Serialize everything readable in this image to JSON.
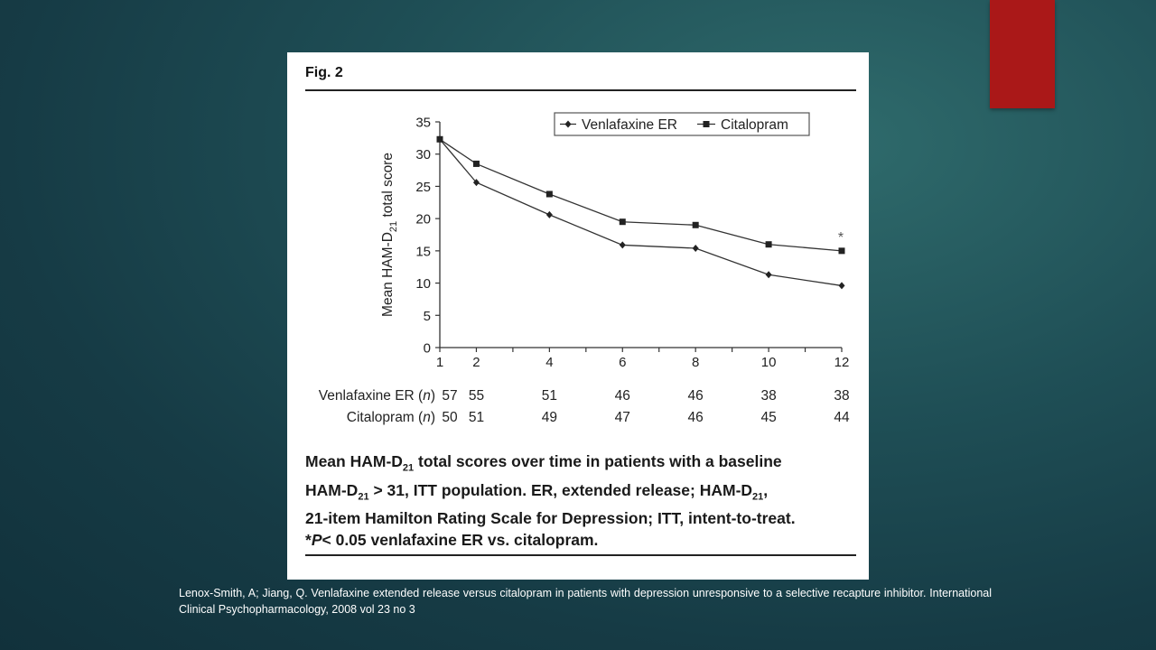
{
  "figure": {
    "label": "Fig. 2",
    "caption": {
      "l1_a": "Mean HAM-D",
      "l1_sub": "21",
      "l1_b": " total scores over time in patients with a baseline",
      "l2_a": "HAM-D",
      "l2_sub": "21",
      "l2_b": " > 31, ITT population. ER, extended release; HAM-D",
      "l2_sub2": "21",
      "l2_c": ",",
      "l3": "21-item Hamilton Rating Scale for Depression; ITT, intent-to-treat.",
      "l4_a": "*",
      "l4_p": "P",
      "l4_b": "< 0.05 venlafaxine ER vs. citalopram."
    }
  },
  "chart_data": {
    "type": "line",
    "ylabel_main": "Mean HAM-D",
    "ylabel_sub": "21",
    "ylabel_tail": " total score",
    "xlabel": "",
    "ylim": [
      0,
      35
    ],
    "yticks": [
      "0",
      "5",
      "10",
      "15",
      "20",
      "25",
      "30",
      "35"
    ],
    "x": [
      1,
      2,
      4,
      6,
      8,
      10,
      12
    ],
    "xticks": [
      "1",
      "2",
      "4",
      "6",
      "8",
      "10",
      "12"
    ],
    "legend_position": "top-right",
    "series": [
      {
        "name": "Venlafaxine ER",
        "marker": "diamond",
        "values": [
          32.3,
          25.6,
          20.6,
          15.9,
          15.4,
          11.3,
          9.6
        ]
      },
      {
        "name": "Citalopram",
        "marker": "square",
        "values": [
          32.3,
          28.5,
          23.8,
          19.5,
          19.0,
          16.0,
          15.0
        ]
      }
    ],
    "annotation": "*",
    "n_table": [
      {
        "label": "Venlafaxine ER (",
        "label_n": "n",
        "label_end": ")",
        "values": [
          "57",
          "55",
          "51",
          "46",
          "46",
          "38",
          "38"
        ]
      },
      {
        "label": "Citalopram (",
        "label_n": "n",
        "label_end": ")",
        "values": [
          "50",
          "51",
          "49",
          "47",
          "46",
          "45",
          "44"
        ]
      }
    ]
  },
  "citation": "Lenox-Smith, A; Jiang, Q. Venlafaxine extended release versus citalopram in patients with depression unresponsive to a selective recapture inhibitor. International Clinical Psychopharmacology, 2008 vol 23 no 3",
  "colors": {
    "accent_red": "#aa1818",
    "background": "#1f4f56",
    "line": "#333333"
  }
}
